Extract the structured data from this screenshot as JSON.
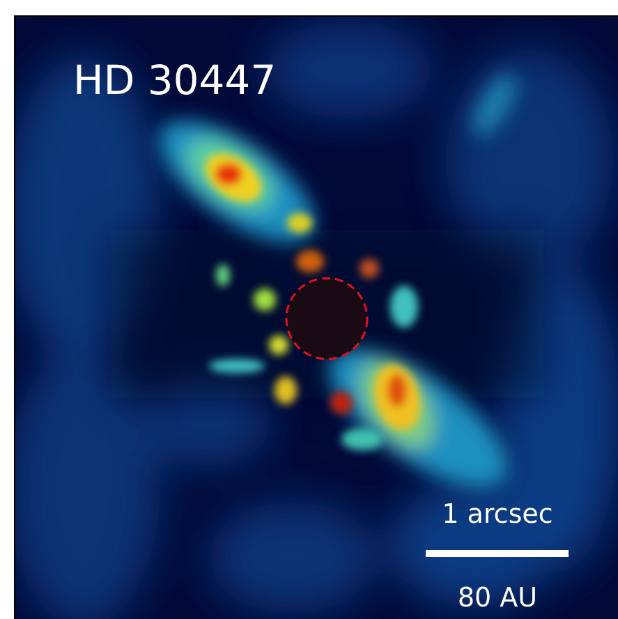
{
  "image": {
    "title": "HD 30447",
    "scale_bar": {
      "top_label": "1 arcsec",
      "bottom_label": "80 AU"
    }
  }
}
